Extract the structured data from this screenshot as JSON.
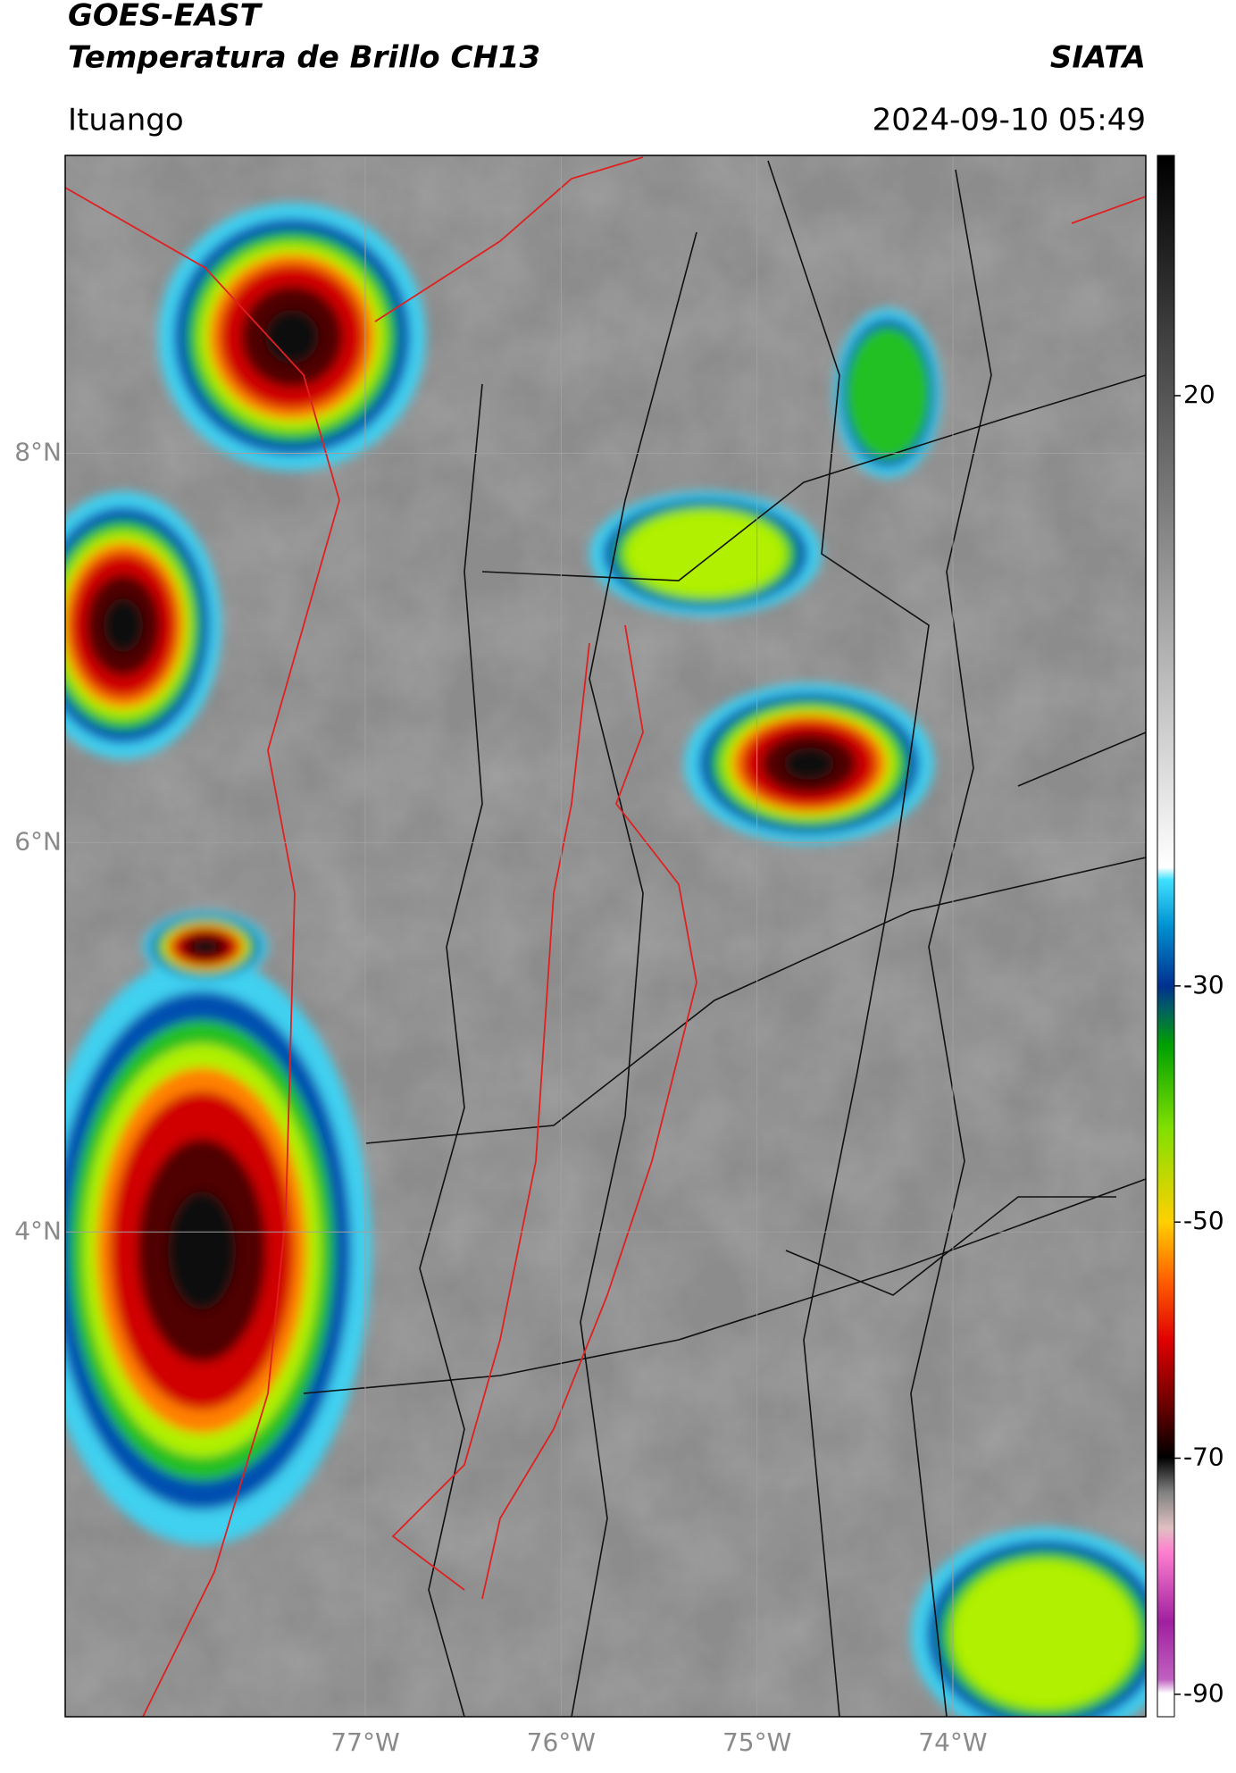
{
  "header": {
    "title": "GOES-EAST",
    "subtitle": "Temperatura de Brillo CH13",
    "source": "SIATA",
    "location": "Ituango",
    "datetime": "2024-09-10 05:49"
  },
  "map": {
    "xlim": [
      -78.532,
      -73.015
    ],
    "ylim": [
      1.51,
      9.53
    ],
    "xticks": [
      {
        "value": -77,
        "label": "77°W"
      },
      {
        "value": -76,
        "label": "76°W"
      },
      {
        "value": -75,
        "label": "75°W"
      },
      {
        "value": -74,
        "label": "74°W"
      }
    ],
    "yticks": [
      {
        "value": 8,
        "label": "8°N"
      },
      {
        "value": 6,
        "label": "6°N"
      },
      {
        "value": 4,
        "label": "4°N"
      }
    ],
    "grid": true
  },
  "colorbar": {
    "lim": [
      -91.9,
      40.35
    ],
    "ticks": [
      20,
      -30,
      -50,
      -70,
      -90
    ]
  }
}
